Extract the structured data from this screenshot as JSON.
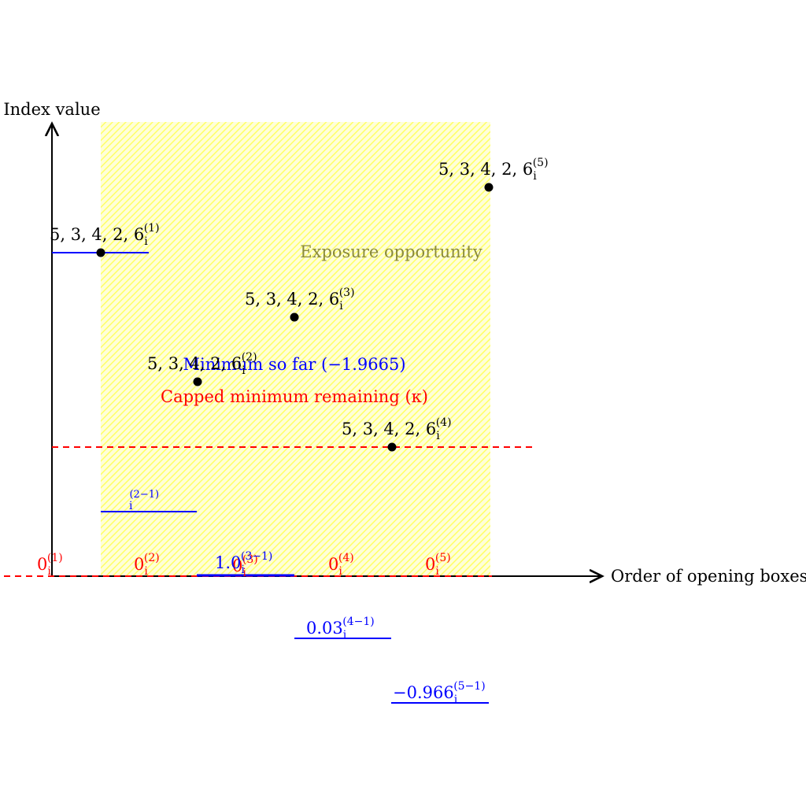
{
  "axes": {
    "x_label": "Order of opening boxes",
    "y_label": "Index value"
  },
  "region": {
    "label": "Exposure opportunity",
    "color": "#ffff66",
    "label_color": "#8a8a3c"
  },
  "lines": {
    "minimum_label": "Minimum so far (−1.9665)",
    "minimum_color": "#0000ff",
    "capped_label": "Capped minimum remaining (κ)",
    "capped_color": "#ff0000"
  },
  "points": [
    {
      "base": "5, 3, 4, 2, 6",
      "sub": "i",
      "sup": "(1)"
    },
    {
      "base": "5, 3, 4, 2, 6",
      "sub": "i",
      "sup": "(2)"
    },
    {
      "base": "5, 3, 4, 2, 6",
      "sub": "i",
      "sup": "(3)"
    },
    {
      "base": "5, 3, 4, 2, 6",
      "sub": "i",
      "sup": "(4)"
    },
    {
      "base": "5, 3, 4, 2, 6",
      "sub": "i",
      "sup": "(5)"
    }
  ],
  "zero_labels": [
    {
      "base": "0",
      "sub": "i",
      "sup": "(1)"
    },
    {
      "base": "0",
      "sub": "i",
      "sup": "(2)"
    },
    {
      "base": "0",
      "sub": "i",
      "sup": "(3)"
    },
    {
      "base": "0",
      "sub": "i",
      "sup": "(4)"
    },
    {
      "base": "0",
      "sub": "i",
      "sup": "(5)"
    }
  ],
  "increments": [
    {
      "base": "",
      "sub": "i",
      "sup": "(2−1)"
    },
    {
      "base": "1.0",
      "sub": "i",
      "sup": "(3−1)"
    },
    {
      "base": "0.03",
      "sub": "i",
      "sup": "(4−1)"
    },
    {
      "base": "−0.966",
      "sub": "i",
      "sup": "(5−1)"
    }
  ]
}
